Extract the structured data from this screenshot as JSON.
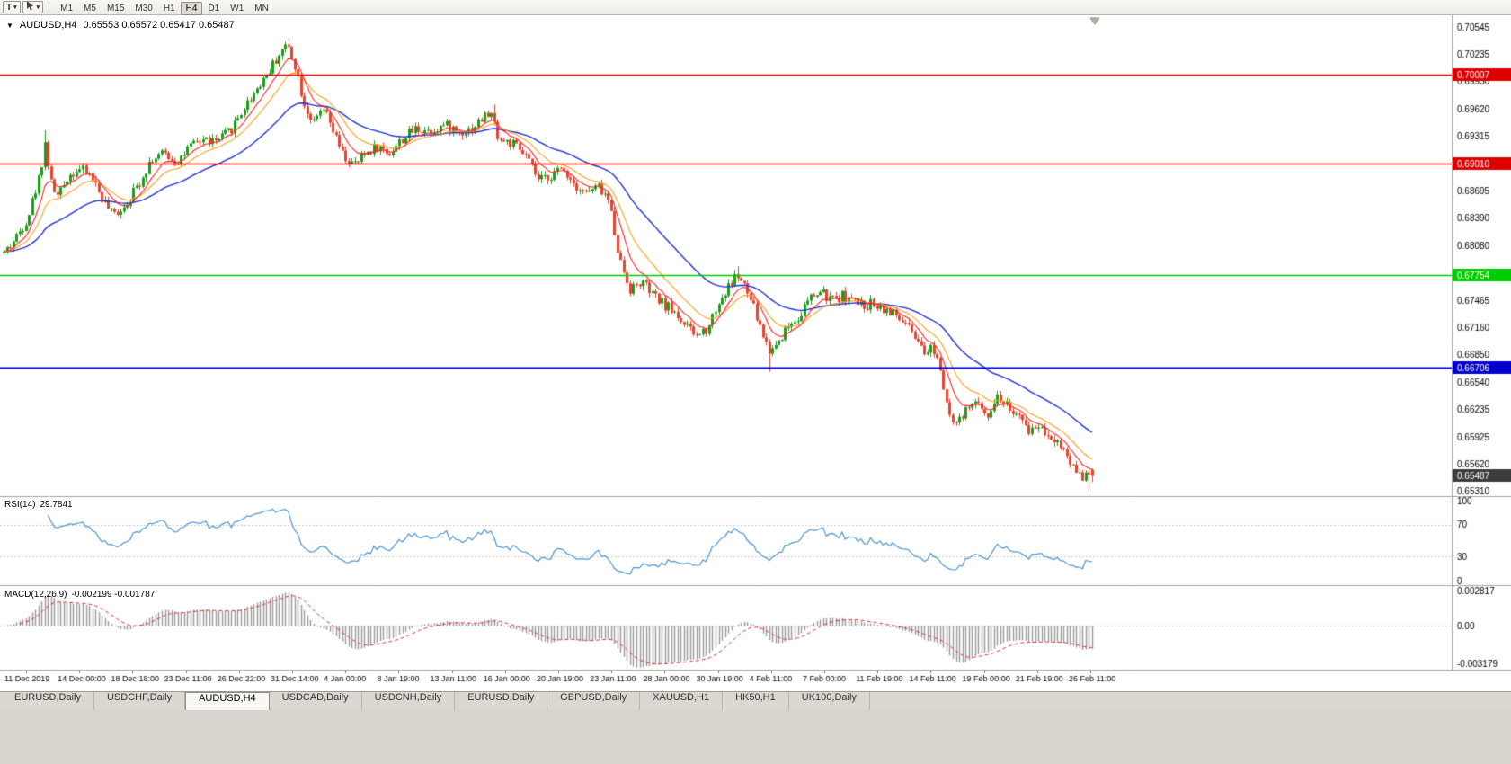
{
  "icons": {
    "dropdown": "▾",
    "chart_menu": "▼"
  },
  "toolbar": {
    "tool_t_label": "T",
    "timeframes": [
      "M1",
      "M5",
      "M15",
      "M30",
      "H1",
      "H4",
      "D1",
      "W1",
      "MN"
    ],
    "active_timeframe": "H4"
  },
  "chart": {
    "symbol": "AUDUSD,H4",
    "ohlc": "0.65553 0.65572 0.65417 0.65487",
    "price_axis_labels": [
      "0.70545",
      "0.70235",
      "0.69930",
      "0.69620",
      "0.69315",
      "0.68695",
      "0.68390",
      "0.68080",
      "0.67465",
      "0.67160",
      "0.66850",
      "0.66540",
      "0.66235",
      "0.65925",
      "0.65620",
      "0.65310"
    ],
    "hlines": [
      {
        "price": 0.70007,
        "label": "0.70007",
        "color": "#dd0000",
        "width": 1.5
      },
      {
        "price": 0.6901,
        "label": "0.69010",
        "color": "#dd0000",
        "width": 1.5
      },
      {
        "price": 0.67754,
        "label": "0.67754",
        "color": "#00cc00",
        "width": 1.5
      },
      {
        "price": 0.66706,
        "label": "0.66706",
        "color": "#0000cc",
        "width": 2
      }
    ],
    "current_price": {
      "price": 0.65487,
      "label": "0.65487",
      "color": "#3c3c3c"
    }
  },
  "rsi": {
    "name": "RSI(14)",
    "value": "29.7841",
    "axis": [
      {
        "label": "100",
        "value": 100
      },
      {
        "label": "70",
        "value": 70
      },
      {
        "label": "30",
        "value": 30
      },
      {
        "label": "0",
        "value": 0
      }
    ]
  },
  "macd": {
    "name": "MACD(12,26,9)",
    "value": "-0.002199 -0.001787",
    "axis": [
      {
        "label": "0.002817",
        "value": 0.002817
      },
      {
        "label": "0.00",
        "value": 0
      },
      {
        "label": "-0.003179",
        "value": -0.003179
      }
    ]
  },
  "time_axis": {
    "labels": [
      "11 Dec 2019",
      "14 Dec 00:00",
      "18 Dec 18:00",
      "23 Dec 11:00",
      "26 Dec 22:00",
      "31 Dec 14:00",
      "4 Jan 00:00",
      "8 Jan 19:00",
      "13 Jan 11:00",
      "16 Jan 00:00",
      "20 Jan 19:00",
      "23 Jan 11:00",
      "28 Jan 00:00",
      "30 Jan 19:00",
      "4 Feb 11:00",
      "7 Feb 00:00",
      "11 Feb 19:00",
      "14 Feb 11:00",
      "19 Feb 00:00",
      "21 Feb 19:00",
      "26 Feb 11:00"
    ]
  },
  "tabs": {
    "items": [
      "EURUSD,Daily",
      "USDCHF,Daily",
      "AUDUSD,H4",
      "USDCAD,Daily",
      "USDCNH,Daily",
      "EURUSD,Daily",
      "GBPUSD,Daily",
      "XAUUSD,H1",
      "HK50,H1",
      "UK100,Daily"
    ],
    "active_index": 2
  },
  "colors": {
    "up": "#16a016",
    "down": "#e8432e",
    "ma_fast": "#ff2222",
    "ma_mid": "#ff9f1a",
    "ma_slow": "#2430d8",
    "rsi": "#4f94cd",
    "macd_hist": "#9a9a9a",
    "macd_signal": "#e03030"
  },
  "chart_data": {
    "type": "candlestick",
    "symbol": "AUDUSD",
    "timeframe": "H4",
    "candle_count": 345,
    "candle_spacing": 3.52,
    "seed": 42,
    "price_range_visible": [
      0.6531,
      0.70545
    ],
    "last_candle": {
      "o": 0.65553,
      "h": 0.65572,
      "l": 0.65417,
      "c": 0.65487
    },
    "spikes": [
      {
        "t": 0.038,
        "high": 0.6938
      },
      {
        "t": 0.261,
        "high": 0.7042
      },
      {
        "t": 0.45,
        "high": 0.6967
      },
      {
        "t": 0.673,
        "high": 0.6785
      },
      {
        "t": 0.704,
        "low": 0.6666
      },
      {
        "t": 0.997,
        "low": 0.6531
      }
    ],
    "price_anchors": [
      [
        0.0,
        0.68
      ],
      [
        0.01,
        0.6815
      ],
      [
        0.022,
        0.684
      ],
      [
        0.033,
        0.6888
      ],
      [
        0.038,
        0.6925
      ],
      [
        0.043,
        0.688
      ],
      [
        0.05,
        0.6862
      ],
      [
        0.058,
        0.6885
      ],
      [
        0.068,
        0.6895
      ],
      [
        0.08,
        0.6888
      ],
      [
        0.09,
        0.6862
      ],
      [
        0.1,
        0.6842
      ],
      [
        0.112,
        0.6855
      ],
      [
        0.125,
        0.688
      ],
      [
        0.135,
        0.6905
      ],
      [
        0.148,
        0.6912
      ],
      [
        0.158,
        0.6902
      ],
      [
        0.17,
        0.6918
      ],
      [
        0.183,
        0.6928
      ],
      [
        0.196,
        0.6925
      ],
      [
        0.208,
        0.6938
      ],
      [
        0.22,
        0.6962
      ],
      [
        0.232,
        0.6985
      ],
      [
        0.245,
        0.7008
      ],
      [
        0.255,
        0.7028
      ],
      [
        0.261,
        0.7034
      ],
      [
        0.268,
        0.701
      ],
      [
        0.276,
        0.6968
      ],
      [
        0.285,
        0.6945
      ],
      [
        0.293,
        0.6962
      ],
      [
        0.302,
        0.6938
      ],
      [
        0.312,
        0.6908
      ],
      [
        0.322,
        0.6898
      ],
      [
        0.332,
        0.6912
      ],
      [
        0.342,
        0.692
      ],
      [
        0.354,
        0.6912
      ],
      [
        0.366,
        0.6928
      ],
      [
        0.378,
        0.694
      ],
      [
        0.392,
        0.6938
      ],
      [
        0.405,
        0.6944
      ],
      [
        0.418,
        0.6936
      ],
      [
        0.43,
        0.694
      ],
      [
        0.44,
        0.6952
      ],
      [
        0.447,
        0.6958
      ],
      [
        0.455,
        0.6928
      ],
      [
        0.468,
        0.6922
      ],
      [
        0.48,
        0.6908
      ],
      [
        0.492,
        0.688
      ],
      [
        0.503,
        0.6888
      ],
      [
        0.514,
        0.6895
      ],
      [
        0.524,
        0.6878
      ],
      [
        0.535,
        0.6868
      ],
      [
        0.547,
        0.6874
      ],
      [
        0.556,
        0.6858
      ],
      [
        0.566,
        0.6792
      ],
      [
        0.576,
        0.6758
      ],
      [
        0.586,
        0.6768
      ],
      [
        0.596,
        0.6752
      ],
      [
        0.606,
        0.6742
      ],
      [
        0.616,
        0.6734
      ],
      [
        0.626,
        0.6718
      ],
      [
        0.636,
        0.6706
      ],
      [
        0.646,
        0.6715
      ],
      [
        0.656,
        0.6742
      ],
      [
        0.666,
        0.6762
      ],
      [
        0.673,
        0.6776
      ],
      [
        0.681,
        0.676
      ],
      [
        0.689,
        0.6738
      ],
      [
        0.696,
        0.6712
      ],
      [
        0.704,
        0.6688
      ],
      [
        0.712,
        0.6702
      ],
      [
        0.721,
        0.6718
      ],
      [
        0.73,
        0.6728
      ],
      [
        0.74,
        0.6748
      ],
      [
        0.75,
        0.6756
      ],
      [
        0.76,
        0.6746
      ],
      [
        0.77,
        0.6752
      ],
      [
        0.78,
        0.6746
      ],
      [
        0.79,
        0.674
      ],
      [
        0.8,
        0.6744
      ],
      [
        0.81,
        0.6736
      ],
      [
        0.82,
        0.6728
      ],
      [
        0.83,
        0.6718
      ],
      [
        0.84,
        0.6695
      ],
      [
        0.847,
        0.6684
      ],
      [
        0.853,
        0.6696
      ],
      [
        0.859,
        0.6678
      ],
      [
        0.866,
        0.6636
      ],
      [
        0.873,
        0.6606
      ],
      [
        0.881,
        0.6614
      ],
      [
        0.889,
        0.6632
      ],
      [
        0.896,
        0.6626
      ],
      [
        0.904,
        0.662
      ],
      [
        0.913,
        0.6638
      ],
      [
        0.921,
        0.663
      ],
      [
        0.931,
        0.6616
      ],
      [
        0.941,
        0.66
      ],
      [
        0.951,
        0.6606
      ],
      [
        0.961,
        0.6594
      ],
      [
        0.971,
        0.6584
      ],
      [
        0.981,
        0.6562
      ],
      [
        0.991,
        0.6549
      ],
      [
        1.0,
        0.6549
      ]
    ]
  }
}
